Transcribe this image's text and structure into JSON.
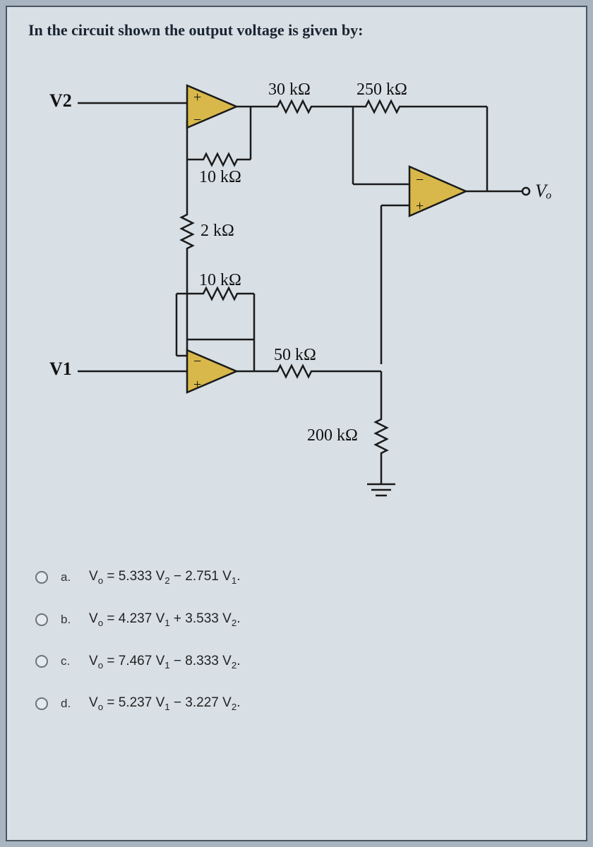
{
  "question": "In the circuit shown the output voltage is given by:",
  "circuit": {
    "inputs": {
      "v2": "V2",
      "v1": "V1",
      "vo": "Vₒ"
    },
    "resistors": {
      "r_top1": "30 kΩ",
      "r_top2": "250 kΩ",
      "r_fb1": "10 kΩ",
      "r_series": "2 kΩ",
      "r_mid": "10 kΩ",
      "r_lower": "50 kΩ",
      "r_ground": "200 kΩ"
    },
    "colors": {
      "wire": "#1a1a1a",
      "amp_fill": "#d8b84a",
      "amp_stroke": "#1a1a1a",
      "resistor": "#1a1a1a",
      "bg": "#d8dfe5"
    },
    "stroke_width": 2.5
  },
  "options": [
    {
      "letter": "a.",
      "text_html": "V<sub>o</sub> = 5.333 V<sub>2</sub> − 2.751 V<sub>1</sub>."
    },
    {
      "letter": "b.",
      "text_html": "V<sub>o</sub> = 4.237 V<sub>1</sub> + 3.533 V<sub>2</sub>."
    },
    {
      "letter": "c.",
      "text_html": "V<sub>o</sub> = 7.467 V<sub>1</sub> − 8.333 V<sub>2</sub>."
    },
    {
      "letter": "d.",
      "text_html": "V<sub>o</sub> = 5.237 V<sub>1</sub> − 3.227 V<sub>2</sub>."
    }
  ]
}
